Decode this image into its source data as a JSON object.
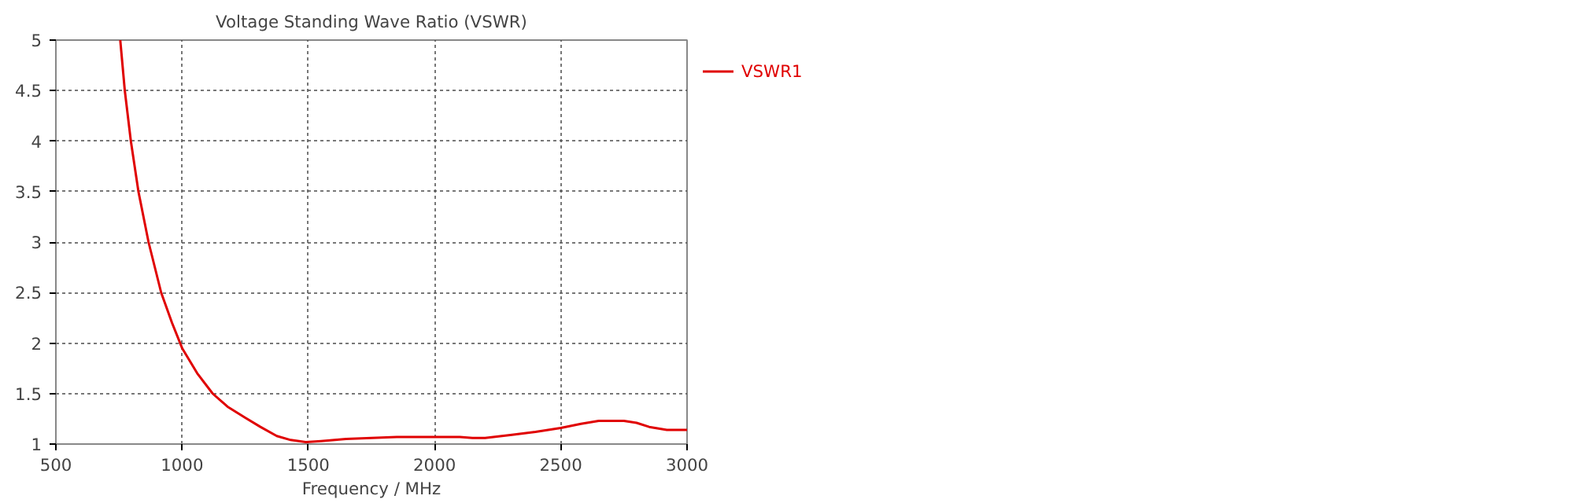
{
  "chart_data": {
    "type": "line",
    "title": "Voltage Standing Wave Ratio (VSWR)",
    "xlabel": "Frequency / MHz",
    "series": [
      {
        "name": "VSWR1",
        "color": "#e00000",
        "x": [
          755,
          773,
          797,
          827,
          867,
          917,
          960,
          1000,
          1060,
          1121,
          1180,
          1250,
          1310,
          1375,
          1430,
          1490,
          1550,
          1650,
          1750,
          1850,
          2000,
          2100,
          2150,
          2200,
          2300,
          2400,
          2500,
          2580,
          2650,
          2700,
          2750,
          2800,
          2850,
          2920,
          3000
        ],
        "values": [
          5,
          4.5,
          4,
          3.5,
          3,
          2.5,
          2.2,
          1.95,
          1.7,
          1.5,
          1.37,
          1.26,
          1.17,
          1.08,
          1.04,
          1.02,
          1.03,
          1.05,
          1.06,
          1.07,
          1.07,
          1.07,
          1.06,
          1.06,
          1.09,
          1.12,
          1.16,
          1.2,
          1.23,
          1.23,
          1.23,
          1.21,
          1.17,
          1.14,
          1.14
        ]
      }
    ],
    "xlim": [
      500,
      3000
    ],
    "xticks": [
      500,
      1000,
      1500,
      2000,
      2500,
      3000
    ],
    "ylim": [
      1,
      5
    ],
    "yticks": [
      1,
      1.5,
      2,
      2.5,
      3,
      3.5,
      4,
      4.5,
      5
    ],
    "grid": true,
    "legend": "right",
    "line_style": "solid"
  }
}
